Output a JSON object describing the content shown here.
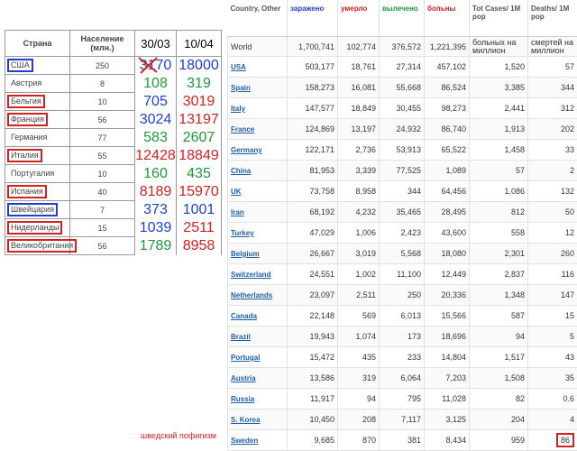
{
  "left_table": {
    "headers": [
      "Страна",
      "Население (млн.)",
      "30/03",
      "10/04"
    ],
    "rows": [
      {
        "country": "США",
        "box": "#1f3fd1",
        "population": "250",
        "v1": "3170",
        "c1": "#1f3fd1",
        "v2": "18000",
        "c2": "#1f3fd1"
      },
      {
        "country": "Австрия",
        "box": null,
        "population": "8",
        "v1": "108",
        "c1": "#1a9a3a",
        "v2": "319",
        "c2": "#1a9a3a"
      },
      {
        "country": "Бельгия",
        "box": "#d62020",
        "population": "10",
        "v1": "705",
        "c1": "#1f3fd1",
        "v2": "3019",
        "c2": "#d62020"
      },
      {
        "country": "Франция",
        "box": "#d62020",
        "population": "56",
        "v1": "3024",
        "c1": "#1f3fd1",
        "v2": "13197",
        "c2": "#d62020"
      },
      {
        "country": "Германия",
        "box": null,
        "population": "77",
        "v1": "583",
        "c1": "#1a9a3a",
        "v2": "2607",
        "c2": "#1a9a3a"
      },
      {
        "country": "Италия",
        "box": "#d62020",
        "population": "55",
        "v1": "12428",
        "c1": "#d62020",
        "v2": "18849",
        "c2": "#d62020"
      },
      {
        "country": "Португалия",
        "box": null,
        "population": "10",
        "v1": "160",
        "c1": "#1a9a3a",
        "v2": "435",
        "c2": "#1a9a3a"
      },
      {
        "country": "Испания",
        "box": "#d62020",
        "population": "40",
        "v1": "8189",
        "c1": "#d62020",
        "v2": "15970",
        "c2": "#d62020"
      },
      {
        "country": "Швейцария",
        "box": "#1f3fd1",
        "population": "7",
        "v1": "373",
        "c1": "#1f3fd1",
        "v2": "1001",
        "c2": "#1f3fd1"
      },
      {
        "country": "Нидерланды",
        "box": "#d62020",
        "population": "15",
        "v1": "1039",
        "c1": "#1f3fd1",
        "v2": "2511",
        "c2": "#d62020"
      },
      {
        "country": "Великобритания",
        "box": "#d62020",
        "population": "56",
        "v1": "1789",
        "c1": "#1a9a3a",
        "v2": "8958",
        "c2": "#d62020"
      }
    ]
  },
  "caption": "шведский пофигизм",
  "right_table": {
    "headers": [
      {
        "text": "Country, Other",
        "color": "#555"
      },
      {
        "text": "заражено",
        "color": "#1f3fd1"
      },
      {
        "text": "умерло",
        "color": "#d62020"
      },
      {
        "text": "вылечено",
        "color": "#1a9a3a"
      },
      {
        "text": "больны",
        "color": "#d62020"
      },
      {
        "text": "Tot Cases/ 1M pop",
        "color": "#555"
      },
      {
        "text": "Deaths/ 1M pop",
        "color": "#555"
      }
    ],
    "world": [
      "World",
      "1,700,741",
      "102,774",
      "376,572",
      "1,221,395"
    ],
    "notes": [
      "больных на миллион",
      "смертей на миллион"
    ],
    "rows": [
      [
        "USA",
        "503,177",
        "18,761",
        "27,314",
        "457,102",
        "1,520",
        "57"
      ],
      [
        "Spain",
        "158,273",
        "16,081",
        "55,668",
        "86,524",
        "3,385",
        "344"
      ],
      [
        "Italy",
        "147,577",
        "18,849",
        "30,455",
        "98,273",
        "2,441",
        "312"
      ],
      [
        "France",
        "124,869",
        "13,197",
        "24,932",
        "86,740",
        "1,913",
        "202"
      ],
      [
        "Germany",
        "122,171",
        "2,736",
        "53,913",
        "65,522",
        "1,458",
        "33"
      ],
      [
        "China",
        "81,953",
        "3,339",
        "77,525",
        "1,089",
        "57",
        "2"
      ],
      [
        "UK",
        "73,758",
        "8,958",
        "344",
        "64,456",
        "1,086",
        "132"
      ],
      [
        "Iran",
        "68,192",
        "4,232",
        "35,465",
        "28,495",
        "812",
        "50"
      ],
      [
        "Turkey",
        "47,029",
        "1,006",
        "2,423",
        "43,600",
        "558",
        "12"
      ],
      [
        "Belgium",
        "26,667",
        "3,019",
        "5,568",
        "18,080",
        "2,301",
        "260"
      ],
      [
        "Switzerland",
        "24,551",
        "1,002",
        "11,100",
        "12,449",
        "2,837",
        "116"
      ],
      [
        "Netherlands",
        "23,097",
        "2,511",
        "250",
        "20,336",
        "1,348",
        "147"
      ],
      [
        "Canada",
        "22,148",
        "569",
        "6,013",
        "15,566",
        "587",
        "15"
      ],
      [
        "Brazil",
        "19,943",
        "1,074",
        "173",
        "18,696",
        "94",
        "5"
      ],
      [
        "Portugal",
        "15,472",
        "435",
        "233",
        "14,804",
        "1,517",
        "43"
      ],
      [
        "Austria",
        "13,586",
        "319",
        "6,064",
        "7,203",
        "1,508",
        "35"
      ],
      [
        "Russia",
        "11,917",
        "94",
        "795",
        "11,028",
        "82",
        "0.6"
      ],
      [
        "S. Korea",
        "10,450",
        "208",
        "7,117",
        "3,125",
        "204",
        "4"
      ],
      [
        "Sweden",
        "9,685",
        "870",
        "381",
        "8,434",
        "959",
        "86"
      ]
    ]
  }
}
